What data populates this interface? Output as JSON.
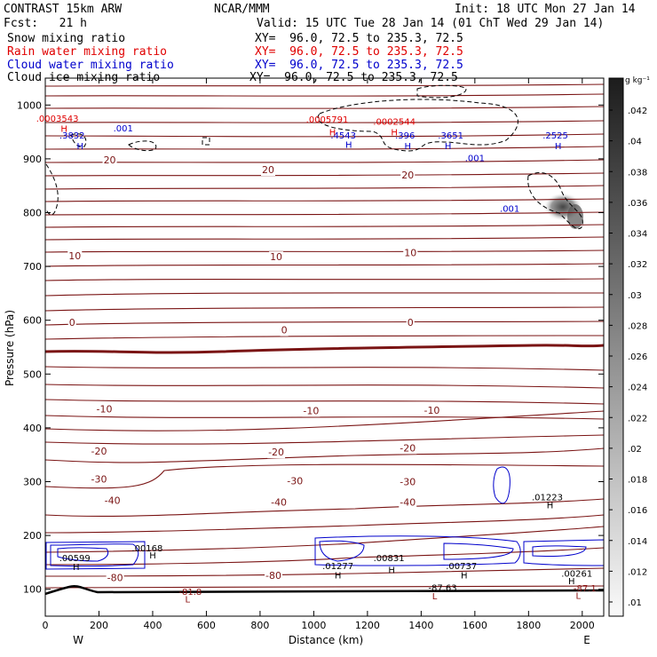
{
  "header": {
    "model": "CONTRAST 15km ARW",
    "org": "NCAR/MMM",
    "init": "Init: 18 UTC Mon 27 Jan 14",
    "fcst": "Fcst:   21 h",
    "valid": "Valid: 15 UTC Tue 28 Jan 14 (01 ChT Wed 29 Jan 14)",
    "legend": [
      {
        "label": "Snow mixing ratio",
        "xy": "XY=  96.0, 72.5 to 235.3, 72.5",
        "color": "#000000"
      },
      {
        "label": "Rain water mixing ratio",
        "xy": "XY=  96.0, 72.5 to 235.3, 72.5",
        "color": "#e00000"
      },
      {
        "label": "Cloud water mixing ratio",
        "xy": "XY=  96.0, 72.5 to 235.3, 72.5",
        "color": "#0000cc"
      },
      {
        "label": "Cloud ice mixing ratio",
        "xy": "XY=  96.0, 72.5 to 235.3, 72.5",
        "color": "#000000"
      }
    ]
  },
  "chart_data": {
    "type": "cross-section contour",
    "xlabel": "Distance (km)",
    "ylabel": "Pressure (hPa)",
    "xlim": [
      0,
      2080
    ],
    "ylim": [
      1050,
      50
    ],
    "xticks": [
      0,
      200,
      400,
      600,
      800,
      1000,
      1200,
      1400,
      1600,
      1800,
      2000
    ],
    "yticks": [
      100,
      200,
      300,
      400,
      500,
      600,
      700,
      800,
      900,
      1000
    ],
    "x_end_labels": {
      "left": "W",
      "right": "E"
    },
    "colorbar": {
      "unit_label": "g kg⁻¹",
      "ticks": [
        ".042",
        ".04",
        ".038",
        ".036",
        ".034",
        ".032",
        ".03",
        ".028",
        ".026",
        ".024",
        ".022",
        ".02",
        ".018",
        ".016",
        ".014",
        ".012",
        ".01"
      ]
    },
    "temperature_labels": [
      {
        "text": "-80",
        "x": 260,
        "p": 122
      },
      {
        "text": "-80",
        "x": 850,
        "p": 126
      },
      {
        "text": "-40",
        "x": 250,
        "p": 265
      },
      {
        "text": "-40",
        "x": 870,
        "p": 262
      },
      {
        "text": "-40",
        "x": 1350,
        "p": 262
      },
      {
        "text": "-30",
        "x": 200,
        "p": 305
      },
      {
        "text": "-30",
        "x": 930,
        "p": 302
      },
      {
        "text": "-30",
        "x": 1350,
        "p": 300
      },
      {
        "text": "-20",
        "x": 200,
        "p": 357
      },
      {
        "text": "-20",
        "x": 860,
        "p": 355
      },
      {
        "text": "-20",
        "x": 1350,
        "p": 363
      },
      {
        "text": "-10",
        "x": 220,
        "p": 435
      },
      {
        "text": "-10",
        "x": 990,
        "p": 432
      },
      {
        "text": "-10",
        "x": 1440,
        "p": 433
      },
      {
        "text": "0",
        "x": 100,
        "p": 596
      },
      {
        "text": "0",
        "x": 890,
        "p": 582
      },
      {
        "text": "0",
        "x": 1360,
        "p": 596
      },
      {
        "text": "10",
        "x": 110,
        "p": 720
      },
      {
        "text": "10",
        "x": 860,
        "p": 718
      },
      {
        "text": "10",
        "x": 1360,
        "p": 726
      },
      {
        "text": "20",
        "x": 240,
        "p": 898
      },
      {
        "text": "20",
        "x": 830,
        "p": 880
      },
      {
        "text": "20",
        "x": 1350,
        "p": 870
      }
    ],
    "extrema_labels": [
      {
        "text": "L",
        "x": 530,
        "p": 82,
        "color": "#8b1010"
      },
      {
        "text": "-81.8",
        "x": 540,
        "p": 96,
        "color": "#8b1010"
      },
      {
        "text": "L",
        "x": 1450,
        "p": 88,
        "color": "#8b1010"
      },
      {
        "text": "-87.63",
        "x": 1480,
        "p": 104,
        "color": "#000000"
      },
      {
        "text": "L",
        "x": 1985,
        "p": 89,
        "color": "#8b1010"
      },
      {
        "text": "-87.1",
        "x": 2010,
        "p": 103,
        "color": "#8b1010"
      },
      {
        "text": "H",
        "x": 1960,
        "p": 116,
        "color": "#000000"
      },
      {
        "text": ".00261",
        "x": 1980,
        "p": 130,
        "color": "#000000"
      },
      {
        "text": "H",
        "x": 115,
        "p": 142,
        "color": "#000000"
      },
      {
        "text": ".00599",
        "x": 110,
        "p": 159,
        "color": "#000000"
      },
      {
        "text": "H",
        "x": 400,
        "p": 164,
        "color": "#000000"
      },
      {
        "text": ".00168",
        "x": 380,
        "p": 177,
        "color": "#000000"
      },
      {
        "text": "H",
        "x": 1090,
        "p": 127,
        "color": "#000000"
      },
      {
        "text": ".01277",
        "x": 1090,
        "p": 144,
        "color": "#000000"
      },
      {
        "text": "H",
        "x": 1290,
        "p": 137,
        "color": "#000000"
      },
      {
        "text": ".00831",
        "x": 1280,
        "p": 159,
        "color": "#000000"
      },
      {
        "text": "H",
        "x": 1560,
        "p": 127,
        "color": "#000000"
      },
      {
        "text": ".00737",
        "x": 1550,
        "p": 144,
        "color": "#000000"
      },
      {
        "text": "H",
        "x": 1880,
        "p": 257,
        "color": "#000000"
      },
      {
        "text": ".01223",
        "x": 1870,
        "p": 272,
        "color": "#000000"
      },
      {
        "text": ".001",
        "x": 1730,
        "p": 808,
        "color": "#0000cc"
      },
      {
        "text": "H",
        "x": 130,
        "p": 925,
        "color": "#0000cc"
      },
      {
        "text": ".3832",
        "x": 100,
        "p": 944,
        "color": "#0000cc"
      },
      {
        "text": "H",
        "x": 70,
        "p": 957,
        "color": "#e00000"
      },
      {
        "text": ".0003543",
        "x": 45,
        "p": 976,
        "color": "#e00000"
      },
      {
        "text": ".001",
        "x": 290,
        "p": 958,
        "color": "#0000cc"
      },
      {
        "text": "H",
        "x": 1130,
        "p": 927,
        "color": "#0000cc"
      },
      {
        "text": ".4543",
        "x": 1110,
        "p": 944,
        "color": "#0000cc"
      },
      {
        "text": "H",
        "x": 1070,
        "p": 950,
        "color": "#e00000"
      },
      {
        "text": ".0005791",
        "x": 1050,
        "p": 974,
        "color": "#e00000"
      },
      {
        "text": "H",
        "x": 1350,
        "p": 925,
        "color": "#0000cc"
      },
      {
        "text": ".396",
        "x": 1340,
        "p": 944,
        "color": "#0000cc"
      },
      {
        "text": "H",
        "x": 1300,
        "p": 950,
        "color": "#e00000"
      },
      {
        "text": ".0002544",
        "x": 1300,
        "p": 970,
        "color": "#e00000"
      },
      {
        "text": "H",
        "x": 1500,
        "p": 925,
        "color": "#0000cc"
      },
      {
        "text": ".3651",
        "x": 1510,
        "p": 944,
        "color": "#0000cc"
      },
      {
        "text": ".001",
        "x": 1600,
        "p": 902,
        "color": "#0000cc"
      },
      {
        "text": "H",
        "x": 1910,
        "p": 925,
        "color": "#0000cc"
      },
      {
        "text": ".2525",
        "x": 1900,
        "p": 944,
        "color": "#0000cc"
      }
    ]
  }
}
